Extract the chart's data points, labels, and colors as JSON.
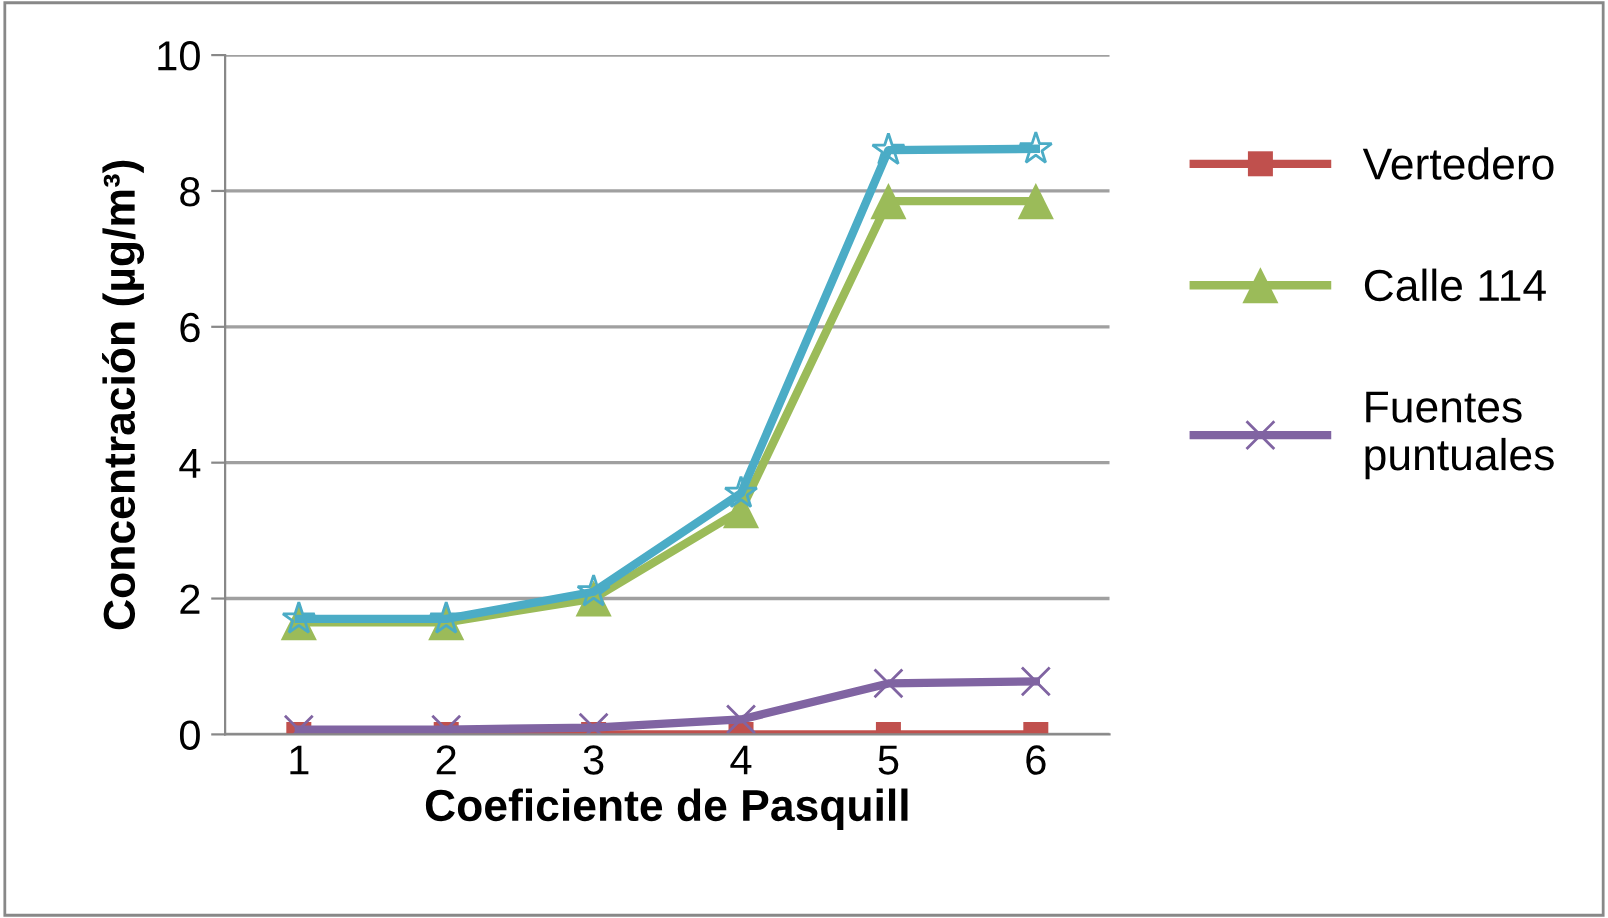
{
  "chart_data": {
    "type": "line",
    "xlabel": "Coeficiente de Pasquill",
    "ylabel": "Concentración (µg/m³)",
    "categories": [
      "1",
      "2",
      "3",
      "4",
      "5",
      "6"
    ],
    "series": [
      {
        "name": "Vertedero",
        "color": "#c0504d",
        "marker": "square",
        "values": [
          0,
          0,
          0,
          0,
          0,
          0
        ]
      },
      {
        "name": "Calle 114",
        "color": "#9bbb59",
        "marker": "triangle",
        "values": [
          1.65,
          1.65,
          2.0,
          3.3,
          7.85,
          7.85
        ]
      },
      {
        "name": "Fuentes\npuntuales",
        "color": "#8064a2",
        "marker": "cross",
        "values": [
          0.07,
          0.07,
          0.1,
          0.22,
          0.75,
          0.78
        ]
      },
      {
        "color": "#4bacc6",
        "marker": "star",
        "values": [
          1.7,
          1.7,
          2.1,
          3.55,
          8.6,
          8.62
        ]
      }
    ],
    "ylim": [
      0,
      10
    ],
    "yticks": [
      0,
      2,
      4,
      6,
      8,
      10
    ],
    "grid": "y",
    "legend": "right",
    "line_style": "solid"
  }
}
